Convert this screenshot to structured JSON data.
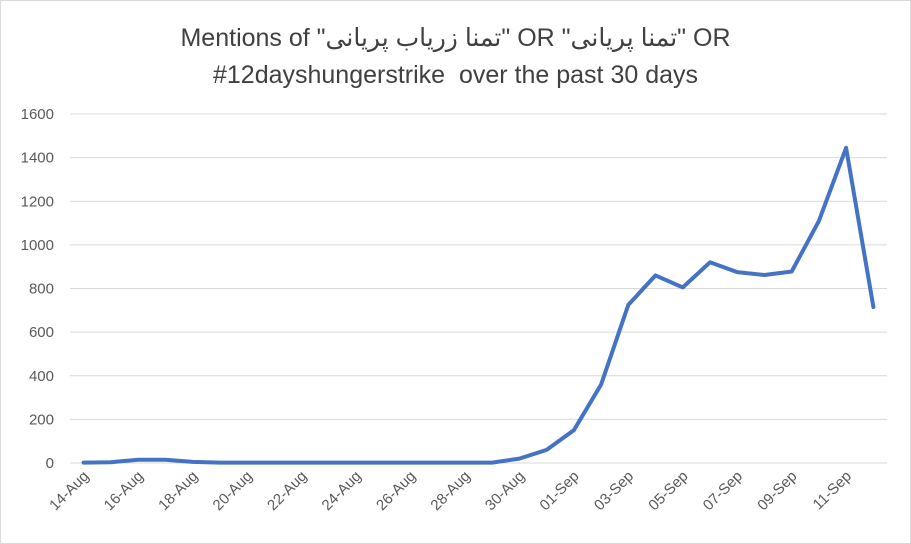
{
  "chart_data": {
    "type": "line",
    "title_lines": [
      "Mentions of \"تمنا زریاب پریانی\" OR \"تمنا پریانی\" OR",
      "#12dayshungerstrike  over the past 30 days"
    ],
    "xlabel": "",
    "ylabel": "",
    "ylim": [
      0,
      1600
    ],
    "yticks": [
      0,
      200,
      400,
      600,
      800,
      1000,
      1200,
      1400,
      1600
    ],
    "grid": true,
    "legend": "none",
    "x_tick_labels": [
      "14-Aug",
      "16-Aug",
      "18-Aug",
      "20-Aug",
      "22-Aug",
      "24-Aug",
      "26-Aug",
      "28-Aug",
      "30-Aug",
      "01-Sep",
      "03-Sep",
      "05-Sep",
      "07-Sep",
      "09-Sep",
      "11-Sep"
    ],
    "x": [
      "14-Aug",
      "15-Aug",
      "16-Aug",
      "17-Aug",
      "18-Aug",
      "19-Aug",
      "20-Aug",
      "21-Aug",
      "22-Aug",
      "23-Aug",
      "24-Aug",
      "25-Aug",
      "26-Aug",
      "27-Aug",
      "28-Aug",
      "29-Aug",
      "30-Aug",
      "31-Aug",
      "01-Sep",
      "02-Sep",
      "03-Sep",
      "04-Sep",
      "05-Sep",
      "06-Sep",
      "07-Sep",
      "08-Sep",
      "09-Sep",
      "10-Sep",
      "11-Sep",
      "12-Sep"
    ],
    "series": [
      {
        "values": [
          2,
          3,
          15,
          15,
          5,
          2,
          2,
          2,
          2,
          2,
          2,
          2,
          2,
          2,
          2,
          2,
          20,
          60,
          150,
          360,
          725,
          860,
          805,
          920,
          875,
          862,
          878,
          1110,
          1445,
          715
        ]
      }
    ],
    "colors": {
      "line": "#4472c4",
      "grid": "#d9d9d9",
      "text": "#595959"
    }
  }
}
